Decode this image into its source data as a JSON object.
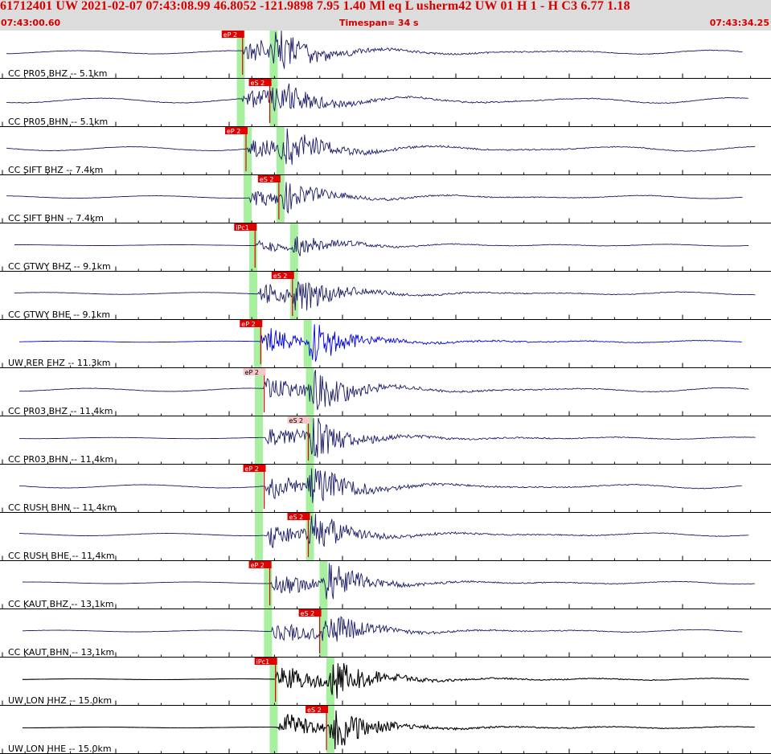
{
  "header": {
    "title": "61712401 UW 2021-02-07 07:43:08.99   46.8052 -121.9898   7.95  1.40 Ml  eq  L usherm42 UW 01  H   1  -  H C3    6.77  1.18",
    "time_start": "07:43:00.60",
    "timespan": "Timespan=  34 s",
    "time_end": "07:43:34.25"
  },
  "colors": {
    "header_bg": "#dcdcdc",
    "header_text": "#d40000",
    "trace": "#1a1a66",
    "trace_blue": "#0000dd",
    "trace_black": "#000000",
    "window_green": "#a8f0a0",
    "pick_red": "#e00000",
    "pick_light": "#f4c8c8"
  },
  "timespan_seconds": 34,
  "channels": [
    {
      "label": "CC PR05 BHZ -- 5.1km",
      "color": "trace",
      "pick": {
        "label": "eP 2",
        "t": 10.7,
        "light": false
      },
      "p_window": 10.55,
      "s_window": 12.0,
      "onset": 10.7,
      "amp": 0.85,
      "noise": 0.08,
      "flat_start": 0.0
    },
    {
      "label": "CC PR05 BHN -- 5.1km",
      "color": "trace",
      "pick": {
        "label": "eS 2",
        "t": 11.9,
        "light": false
      },
      "p_window": 10.55,
      "s_window": 12.0,
      "onset": 10.7,
      "amp": 0.75,
      "noise": 0.12,
      "flat_start": 0.0
    },
    {
      "label": "CC SIFT BHZ -- 7.4km",
      "color": "trace",
      "pick": {
        "label": "eP 2",
        "t": 10.85,
        "light": false
      },
      "p_window": 10.85,
      "s_window": 12.3,
      "onset": 10.9,
      "amp": 0.85,
      "noise": 0.1,
      "flat_start": 0.0
    },
    {
      "label": "CC SIFT BHN -- 7.4km",
      "color": "trace",
      "pick": {
        "label": "eS 2",
        "t": 12.3,
        "light": false
      },
      "p_window": 10.85,
      "s_window": 12.3,
      "onset": 11.0,
      "amp": 0.6,
      "noise": 0.06,
      "flat_start": 0.0
    },
    {
      "label": "CC GTWY BHZ -- 9.1km",
      "color": "trace",
      "pick": {
        "label": "iPc1",
        "t": 11.25,
        "light": false
      },
      "p_window": 11.1,
      "s_window": 12.9,
      "onset": 11.25,
      "amp": 0.45,
      "noise": 0.02,
      "flat_start": 0.5
    },
    {
      "label": "CC GTWY BHE -- 9.1km",
      "color": "trace",
      "pick": {
        "label": "eS 2",
        "t": 12.9,
        "light": false
      },
      "p_window": 11.1,
      "s_window": 12.9,
      "onset": 11.4,
      "amp": 0.8,
      "noise": 0.05,
      "flat_start": 0.5
    },
    {
      "label": "UW RER EHZ -- 11.3km",
      "color": "trace_blue",
      "pick": {
        "label": "eP 2",
        "t": 11.5,
        "light": false
      },
      "p_window": 11.3,
      "s_window": 13.5,
      "onset": 11.5,
      "amp": 0.9,
      "noise": 0.03,
      "flat_start": 0.8
    },
    {
      "label": "CC PR03 BHZ -- 11.4km",
      "color": "trace",
      "pick": {
        "label": "eP 2",
        "t": 11.65,
        "light": true
      },
      "p_window": 11.35,
      "s_window": 13.6,
      "onset": 11.65,
      "amp": 0.9,
      "noise": 0.08,
      "flat_start": 0.8
    },
    {
      "label": "CC PR03 BHN -- 11.4km",
      "color": "trace",
      "pick": {
        "label": "eS 2",
        "t": 13.6,
        "light": true
      },
      "p_window": 11.35,
      "s_window": 13.6,
      "onset": 11.7,
      "amp": 0.85,
      "noise": 0.03,
      "flat_start": 0.8
    },
    {
      "label": "CC RUSH BHN -- 11.4km",
      "color": "trace",
      "pick": {
        "label": "eP 2",
        "t": 11.65,
        "light": false
      },
      "p_window": 11.35,
      "s_window": 13.6,
      "onset": 11.7,
      "amp": 0.9,
      "noise": 0.08,
      "flat_start": 0.8
    },
    {
      "label": "CC RUSH BHE -- 11.4km",
      "color": "trace",
      "pick": {
        "label": "eS 2",
        "t": 13.6,
        "light": false
      },
      "p_window": 11.35,
      "s_window": 13.6,
      "onset": 11.7,
      "amp": 0.85,
      "noise": 0.06,
      "flat_start": 0.8
    },
    {
      "label": "CC KAUT BHZ -- 13.1km",
      "color": "trace",
      "pick": {
        "label": "eP 2",
        "t": 11.9,
        "light": false
      },
      "p_window": 11.75,
      "s_window": 14.2,
      "onset": 11.95,
      "amp": 0.8,
      "noise": 0.04,
      "flat_start": 1.0
    },
    {
      "label": "CC KAUT BHN -- 13.1km",
      "color": "trace",
      "pick": {
        "label": "eS 2",
        "t": 14.1,
        "light": false
      },
      "p_window": 11.75,
      "s_window": 14.2,
      "onset": 12.0,
      "amp": 0.8,
      "noise": 0.04,
      "flat_start": 1.0
    },
    {
      "label": "UW LON HHZ -- 15.0km",
      "color": "trace_black",
      "pick": {
        "label": "iPc1",
        "t": 12.15,
        "light": false
      },
      "p_window": 12.0,
      "s_window": 14.5,
      "onset": 12.15,
      "amp": 0.9,
      "noise": 0.02,
      "flat_start": 1.0
    },
    {
      "label": "UW LON HHE -- 15.0km",
      "color": "trace_black",
      "pick": {
        "label": "eS 2",
        "t": 14.4,
        "light": false
      },
      "p_window": 12.0,
      "s_window": 14.5,
      "onset": 12.2,
      "amp": 0.9,
      "noise": 0.02,
      "flat_start": 1.0
    }
  ]
}
